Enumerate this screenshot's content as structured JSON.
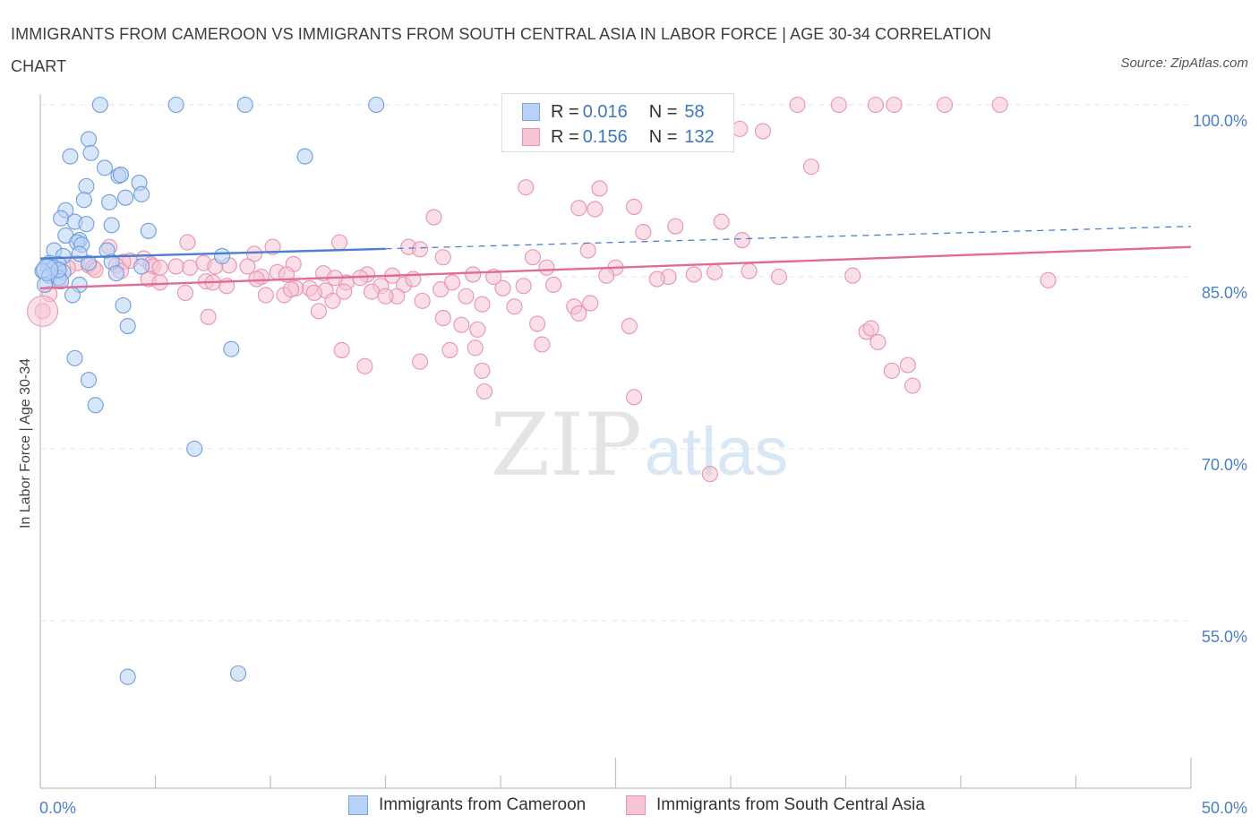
{
  "title": "IMMIGRANTS FROM CAMEROON VS IMMIGRANTS FROM SOUTH CENTRAL ASIA IN LABOR FORCE | AGE 30-34 CORRELATION CHART",
  "source": "Source: ZipAtlas.com",
  "watermark": {
    "zip": "ZIP",
    "atlas": "atlas"
  },
  "colors": {
    "blue": "#4a7fd4",
    "blue_fill": "#b8d1f6",
    "pink": "#e26a96",
    "pink_fill": "#f6c4d4",
    "tick": "#4a7fc8"
  },
  "legend": {
    "rows": [
      {
        "r_label": "R = ",
        "r_value": "0.016",
        "n_label": "N = ",
        "n_value": "58"
      },
      {
        "r_label": "R = ",
        "r_value": "0.156",
        "n_label": "N = ",
        "n_value": "132"
      }
    ]
  },
  "bottom_legend": [
    "Immigrants from Cameroon",
    "Immigrants from South Central Asia"
  ],
  "chart_data": {
    "type": "scatter",
    "title": "IMMIGRANTS FROM CAMEROON VS IMMIGRANTS FROM SOUTH CENTRAL ASIA IN LABOR FORCE | AGE 30-34 CORRELATION CHART",
    "xlabel": "",
    "ylabel": "In Labor Force | Age 30-34",
    "xlim": [
      0,
      50
    ],
    "ylim": [
      40,
      101.3
    ],
    "x_tick_labels": [
      {
        "x": 0,
        "label": "0.0%"
      },
      {
        "x": 50,
        "label": "50.0%"
      }
    ],
    "y_tick_labels": [
      {
        "y": 100,
        "label": "100.0%"
      },
      {
        "y": 85,
        "label": "85.0%"
      },
      {
        "y": 70,
        "label": "70.0%"
      },
      {
        "y": 55,
        "label": "55.0%"
      }
    ],
    "grid": true,
    "legend_position": "top-center",
    "series": [
      {
        "name": "Immigrants from Cameroon",
        "trend": {
          "x0": 0,
          "y0": 86.6,
          "x1": 50,
          "y1": 89.4,
          "solid_until_x": 15
        },
        "points": [
          [
            2.6,
            100
          ],
          [
            5.9,
            100
          ],
          [
            8.9,
            100
          ],
          [
            14.6,
            100
          ],
          [
            2.1,
            97.0
          ],
          [
            1.3,
            95.5
          ],
          [
            2.2,
            95.8
          ],
          [
            11.5,
            95.5
          ],
          [
            2.8,
            94.5
          ],
          [
            3.4,
            93.8
          ],
          [
            3.5,
            93.9
          ],
          [
            4.3,
            93.2
          ],
          [
            2.0,
            92.9
          ],
          [
            4.4,
            92.2
          ],
          [
            3.7,
            91.9
          ],
          [
            1.9,
            91.7
          ],
          [
            3.0,
            91.5
          ],
          [
            1.1,
            90.8
          ],
          [
            0.9,
            90.1
          ],
          [
            1.5,
            89.8
          ],
          [
            2.0,
            89.6
          ],
          [
            3.1,
            89.5
          ],
          [
            4.7,
            89.0
          ],
          [
            1.1,
            88.6
          ],
          [
            1.7,
            88.2
          ],
          [
            1.6,
            88.0
          ],
          [
            1.8,
            87.8
          ],
          [
            0.6,
            87.3
          ],
          [
            2.9,
            87.3
          ],
          [
            1.7,
            87.0
          ],
          [
            1.0,
            86.8
          ],
          [
            7.9,
            86.8
          ],
          [
            0.4,
            86.2
          ],
          [
            0.8,
            86.1
          ],
          [
            2.1,
            86.2
          ],
          [
            3.1,
            86.3
          ],
          [
            0.3,
            86.0
          ],
          [
            0.6,
            85.8
          ],
          [
            4.4,
            85.9
          ],
          [
            0.1,
            85.5
          ],
          [
            1.0,
            85.4
          ],
          [
            3.3,
            85.3
          ],
          [
            0.4,
            85.1
          ],
          [
            0.8,
            84.9
          ],
          [
            0.9,
            84.6
          ],
          [
            1.7,
            84.3
          ],
          [
            0.2,
            84.3
          ],
          [
            1.4,
            83.4
          ],
          [
            3.6,
            82.5
          ],
          [
            3.8,
            80.7
          ],
          [
            8.3,
            78.7
          ],
          [
            1.5,
            77.9
          ],
          [
            2.1,
            76.0
          ],
          [
            2.4,
            73.8
          ],
          [
            6.7,
            70.0
          ],
          [
            3.8,
            50.1
          ],
          [
            8.6,
            50.4
          ],
          [
            0.8,
            85.6
          ]
        ]
      },
      {
        "name": "Immigrants from South Central Asia",
        "trend": {
          "x0": 0,
          "y0": 84.0,
          "x1": 50,
          "y1": 87.6
        },
        "points": [
          [
            32.9,
            100
          ],
          [
            34.7,
            100
          ],
          [
            36.3,
            100
          ],
          [
            37.1,
            100
          ],
          [
            39.3,
            100
          ],
          [
            41.7,
            100
          ],
          [
            30.4,
            97.9
          ],
          [
            33.5,
            94.6
          ],
          [
            21.1,
            92.8
          ],
          [
            24.3,
            92.7
          ],
          [
            25.8,
            91.1
          ],
          [
            23.4,
            91.0
          ],
          [
            24.1,
            90.9
          ],
          [
            17.1,
            90.2
          ],
          [
            29.6,
            89.8
          ],
          [
            27.6,
            89.4
          ],
          [
            26.2,
            88.9
          ],
          [
            30.5,
            88.2
          ],
          [
            6.4,
            88.0
          ],
          [
            13.0,
            88.0
          ],
          [
            10.1,
            87.6
          ],
          [
            16.0,
            87.6
          ],
          [
            3.0,
            87.6
          ],
          [
            16.5,
            87.4
          ],
          [
            23.8,
            87.3
          ],
          [
            9.3,
            87.0
          ],
          [
            17.5,
            86.7
          ],
          [
            21.4,
            86.7
          ],
          [
            4.5,
            86.6
          ],
          [
            3.9,
            86.4
          ],
          [
            3.6,
            86.3
          ],
          [
            1.6,
            86.2
          ],
          [
            7.1,
            86.2
          ],
          [
            4.8,
            86.1
          ],
          [
            11.0,
            86.1
          ],
          [
            3.3,
            86.0
          ],
          [
            8.2,
            86.0
          ],
          [
            2.1,
            86.0
          ],
          [
            4.9,
            85.9
          ],
          [
            6.5,
            85.8
          ],
          [
            7.6,
            85.9
          ],
          [
            9.0,
            85.9
          ],
          [
            2.3,
            85.8
          ],
          [
            5.2,
            85.8
          ],
          [
            5.9,
            85.9
          ],
          [
            1.2,
            85.8
          ],
          [
            0.5,
            85.7
          ],
          [
            2.4,
            85.6
          ],
          [
            3.5,
            85.5
          ],
          [
            14.2,
            85.2
          ],
          [
            18.8,
            85.2
          ],
          [
            22.0,
            85.8
          ],
          [
            25.0,
            85.8
          ],
          [
            10.3,
            85.4
          ],
          [
            10.7,
            85.2
          ],
          [
            12.3,
            85.3
          ],
          [
            15.3,
            85.1
          ],
          [
            9.6,
            85.0
          ],
          [
            4.7,
            84.8
          ],
          [
            7.2,
            84.6
          ],
          [
            0.8,
            84.6
          ],
          [
            5.2,
            84.5
          ],
          [
            13.3,
            84.5
          ],
          [
            15.8,
            84.3
          ],
          [
            22.3,
            84.3
          ],
          [
            8.1,
            84.2
          ],
          [
            14.8,
            84.2
          ],
          [
            11.7,
            84.0
          ],
          [
            17.4,
            83.9
          ],
          [
            20.1,
            84.0
          ],
          [
            11.1,
            84.0
          ],
          [
            12.4,
            83.8
          ],
          [
            11.9,
            83.6
          ],
          [
            6.3,
            83.6
          ],
          [
            10.6,
            83.4
          ],
          [
            13.2,
            83.7
          ],
          [
            14.4,
            83.7
          ],
          [
            15.5,
            83.3
          ],
          [
            18.5,
            83.3
          ],
          [
            9.8,
            83.4
          ],
          [
            16.6,
            82.9
          ],
          [
            12.7,
            82.9
          ],
          [
            19.2,
            82.6
          ],
          [
            20.6,
            82.4
          ],
          [
            23.2,
            82.4
          ],
          [
            23.9,
            82.7
          ],
          [
            15.0,
            83.3
          ],
          [
            10.9,
            83.9
          ],
          [
            12.1,
            82.0
          ],
          [
            17.5,
            81.4
          ],
          [
            7.3,
            81.5
          ],
          [
            23.4,
            81.8
          ],
          [
            18.3,
            80.8
          ],
          [
            21.6,
            80.9
          ],
          [
            25.6,
            80.7
          ],
          [
            19.0,
            80.4
          ],
          [
            35.9,
            80.2
          ],
          [
            36.1,
            80.5
          ],
          [
            36.4,
            79.3
          ],
          [
            21.8,
            79.1
          ],
          [
            18.9,
            78.8
          ],
          [
            13.1,
            78.6
          ],
          [
            17.8,
            78.6
          ],
          [
            16.5,
            77.6
          ],
          [
            14.1,
            77.2
          ],
          [
            37.7,
            77.3
          ],
          [
            19.2,
            76.8
          ],
          [
            37.0,
            76.8
          ],
          [
            37.9,
            75.5
          ],
          [
            19.3,
            75.0
          ],
          [
            25.8,
            74.5
          ],
          [
            29.1,
            67.8
          ],
          [
            0.4,
            83.5
          ],
          [
            0.1,
            82.0
          ],
          [
            35.3,
            85.1
          ],
          [
            43.8,
            84.7
          ],
          [
            31.4,
            97.7
          ],
          [
            7.5,
            84.5
          ],
          [
            29.3,
            85.4
          ],
          [
            28.4,
            85.2
          ],
          [
            27.3,
            85.0
          ],
          [
            9.4,
            84.8
          ],
          [
            13.9,
            84.9
          ],
          [
            19.7,
            85.0
          ],
          [
            21.0,
            84.2
          ],
          [
            16.2,
            84.8
          ],
          [
            17.9,
            84.5
          ],
          [
            12.8,
            84.9
          ],
          [
            24.6,
            85.1
          ],
          [
            26.8,
            84.8
          ],
          [
            30.8,
            85.5
          ],
          [
            32.1,
            85.0
          ]
        ]
      }
    ]
  }
}
